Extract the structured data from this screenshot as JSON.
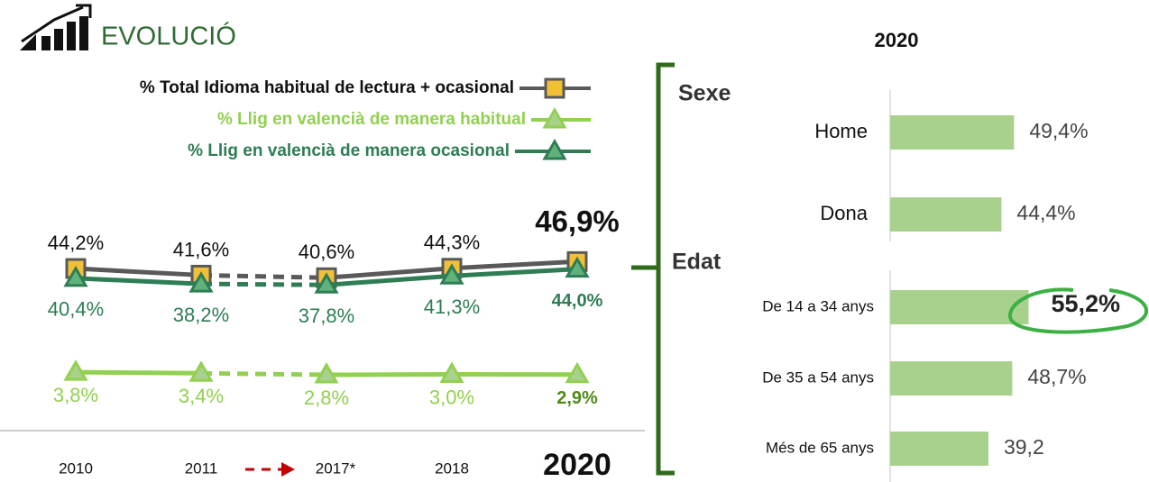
{
  "chart_data": [
    {
      "type": "line",
      "title": "EVOLUCIÓ",
      "categories": [
        "2010",
        "2011",
        "2017*",
        "2018",
        "2020"
      ],
      "series": [
        {
          "name": "% Total Idioma habitual de lectura + ocasional",
          "color": "#595959",
          "marker_color": "#f2c037",
          "marker": "square",
          "values": [
            44.2,
            41.6,
            40.6,
            44.3,
            46.9
          ],
          "value_labels": [
            "44,2%",
            "41,6%",
            "40,6%",
            "44,3%",
            "46,9%"
          ]
        },
        {
          "name": "% Llig en valencià de manera habitual",
          "color": "#92d050",
          "marker_color": "#a9d18e",
          "marker": "triangle",
          "values": [
            3.8,
            3.4,
            2.8,
            3.0,
            2.9
          ],
          "value_labels": [
            "3,8%",
            "3,4%",
            "2,8%",
            "3,0%",
            "2,9%"
          ]
        },
        {
          "name": "% Llig en valencià de manera ocasional",
          "color": "#2e7d55",
          "marker_color": "#5fb27a",
          "marker": "triangle",
          "values": [
            40.4,
            38.2,
            37.8,
            41.3,
            44.0
          ],
          "value_labels": [
            "40,4%",
            "38,2%",
            "37,8%",
            "41,3%",
            "44,0%"
          ]
        }
      ]
    },
    {
      "type": "bar",
      "title": "2020",
      "color": "#a9d18e",
      "groups": [
        {
          "name": "Sexe",
          "categories": [
            "Home",
            "Dona"
          ],
          "values": [
            49.4,
            44.4
          ],
          "value_labels": [
            "49,4%",
            "44,4%"
          ]
        },
        {
          "name": "Edat",
          "categories": [
            "De 14 a 34 anys",
            "De 35 a 54 anys",
            "Més de 65 anys"
          ],
          "values": [
            55.2,
            48.7,
            39.2
          ],
          "value_labels": [
            "55,2%",
            "48,7%",
            "39,2"
          ]
        }
      ]
    }
  ]
}
